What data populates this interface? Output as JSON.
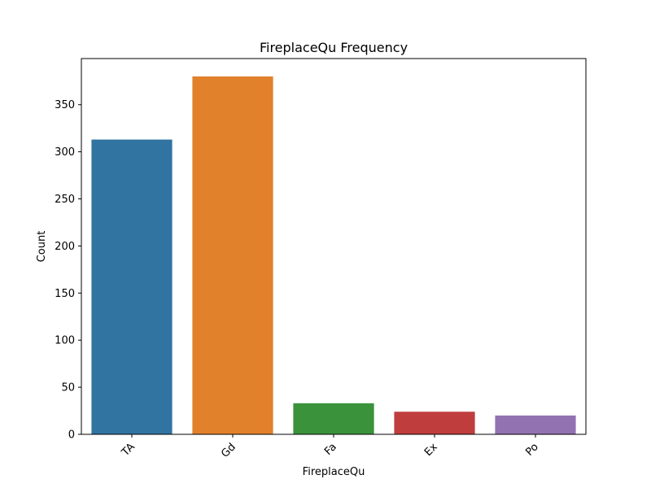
{
  "chart_data": {
    "type": "bar",
    "title": "FireplaceQu Frequency",
    "xlabel": "FireplaceQu",
    "ylabel": "Count",
    "categories": [
      "TA",
      "Gd",
      "Fa",
      "Ex",
      "Po"
    ],
    "values": [
      313,
      380,
      33,
      24,
      20
    ],
    "colors": [
      "#3274a1",
      "#e1812c",
      "#3a923a",
      "#c03d3e",
      "#9372b2"
    ],
    "ylim": [
      0,
      399
    ],
    "yticks": [
      0,
      50,
      100,
      150,
      200,
      250,
      300,
      350
    ],
    "grid": false,
    "xtick_rotation": 45
  }
}
